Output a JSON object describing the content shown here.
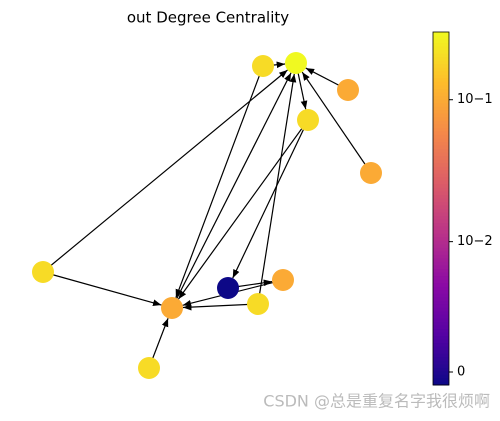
{
  "chart_data": {
    "type": "network",
    "title": "out Degree Centrality",
    "nodes": [
      0.2,
      0.3,
      0.1,
      0.2,
      0.1,
      0.2,
      0,
      0.1,
      0.2,
      0.1,
      0.2
    ],
    "colormap": "plasma",
    "clim": [
      0,
      0.3
    ],
    "scale": "symlog",
    "linthresh": 0.001,
    "cticks": [
      {
        "value": 0,
        "label": "0"
      },
      {
        "value": 0.01,
        "label": "10−2"
      },
      {
        "value": 0.1,
        "label": "10−1"
      }
    ],
    "watermark": "CSDN @总是重复名字我很烦啊"
  }
}
